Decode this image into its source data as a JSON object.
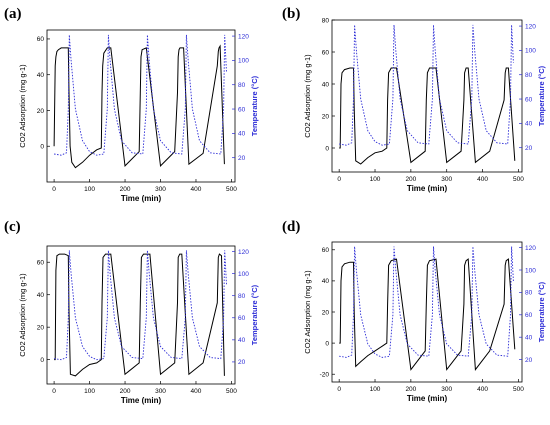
{
  "colors": {
    "adsorption": "#000000",
    "temperature": "#2b2bd6",
    "frame": "#000000"
  },
  "chart_data": [
    {
      "panel": "(a)",
      "type": "line",
      "xlabel": "Time (min)",
      "ylabel": "CO2 Adsorption (mg g-1)",
      "y2label": "Temperature (°C)",
      "xlim": [
        -20,
        510
      ],
      "ylim": [
        -20,
        65
      ],
      "y2lim": [
        0,
        125
      ],
      "xticks": [
        0,
        100,
        200,
        300,
        400,
        500
      ],
      "yticks": [
        0,
        20,
        40,
        60
      ],
      "y2ticks": [
        20,
        40,
        60,
        80,
        100,
        120
      ],
      "grid": false,
      "series": [
        {
          "axis": "left",
          "style": "solid",
          "x": [
            0,
            3,
            5,
            8,
            12,
            20,
            30,
            40,
            42,
            45,
            50,
            60,
            80,
            100,
            120,
            133,
            135,
            137,
            140,
            150,
            160,
            200,
            240,
            243,
            245,
            248,
            260,
            300,
            340,
            348,
            350,
            352,
            355,
            365,
            380,
            420,
            460,
            463,
            465,
            468,
            480
          ],
          "y": [
            0,
            45,
            50,
            53,
            54,
            55,
            55,
            55,
            30,
            0,
            -9,
            -12,
            -9,
            -5,
            -2,
            -1,
            30,
            45,
            52,
            55,
            55,
            -11,
            -3,
            30,
            50,
            54,
            55,
            -11,
            -3,
            30,
            50,
            54,
            55,
            55,
            -10,
            -4,
            45,
            53,
            55,
            56,
            -10
          ]
        },
        {
          "axis": "right",
          "style": "dotted",
          "x": [
            0,
            20,
            35,
            40,
            43,
            48,
            60,
            80,
            100,
            120,
            140,
            150,
            153,
            158,
            170,
            190,
            220,
            250,
            260,
            263,
            268,
            280,
            300,
            330,
            360,
            370,
            373,
            378,
            390,
            410,
            440,
            470,
            478,
            481,
            486
          ],
          "y": [
            23,
            22,
            24,
            60,
            121,
            100,
            60,
            34,
            25,
            22,
            23,
            60,
            121,
            100,
            60,
            34,
            24,
            23,
            60,
            121,
            100,
            60,
            34,
            24,
            23,
            60,
            121,
            100,
            60,
            34,
            24,
            23,
            60,
            121,
            90
          ]
        }
      ]
    },
    {
      "panel": "(b)",
      "type": "line",
      "xlabel": "Time (min)",
      "ylabel": "CO2 Adsorption (mg g-1)",
      "y2label": "Temperature (°C)",
      "xlim": [
        -20,
        510
      ],
      "ylim": [
        -15,
        80
      ],
      "y2lim": [
        0,
        125
      ],
      "xticks": [
        0,
        100,
        200,
        300,
        400,
        500
      ],
      "yticks": [
        0,
        20,
        40,
        60,
        80
      ],
      "y2ticks": [
        20,
        40,
        60,
        80,
        100,
        120
      ],
      "grid": false,
      "series": [
        {
          "axis": "left",
          "style": "solid",
          "x": [
            0,
            3,
            5,
            8,
            15,
            30,
            40,
            42,
            46,
            60,
            80,
            100,
            120,
            133,
            135,
            138,
            145,
            160,
            200,
            240,
            243,
            246,
            252,
            270,
            300,
            340,
            348,
            350,
            354,
            360,
            380,
            420,
            460,
            463,
            466,
            472,
            490
          ],
          "y": [
            0,
            0,
            40,
            47,
            49,
            50,
            50,
            25,
            -8,
            -10,
            -6,
            -3,
            -2,
            0,
            30,
            47,
            50,
            50,
            -9,
            -2,
            30,
            47,
            50,
            50,
            -9,
            -2,
            30,
            47,
            50,
            50,
            -9,
            -2,
            30,
            47,
            50,
            50,
            -8
          ]
        },
        {
          "axis": "right",
          "style": "dotted",
          "x": [
            0,
            20,
            35,
            40,
            43,
            48,
            60,
            80,
            100,
            120,
            140,
            150,
            153,
            158,
            170,
            190,
            220,
            250,
            260,
            263,
            268,
            280,
            300,
            330,
            360,
            370,
            373,
            378,
            390,
            410,
            440,
            470,
            478,
            481,
            486
          ],
          "y": [
            23,
            22,
            24,
            60,
            121,
            100,
            60,
            34,
            25,
            22,
            23,
            60,
            121,
            100,
            60,
            34,
            24,
            23,
            60,
            121,
            100,
            60,
            34,
            24,
            23,
            60,
            121,
            100,
            60,
            34,
            24,
            23,
            60,
            121,
            90
          ]
        }
      ]
    },
    {
      "panel": "(c)",
      "type": "line",
      "xlabel": "Time (min)",
      "ylabel": "CO2 Adsorption (mg g-1)",
      "y2label": "Temperature (°C)",
      "xlim": [
        -20,
        510
      ],
      "ylim": [
        -15,
        70
      ],
      "y2lim": [
        0,
        125
      ],
      "xticks": [
        0,
        100,
        200,
        300,
        400,
        500
      ],
      "yticks": [
        0,
        20,
        40,
        60
      ],
      "y2ticks": [
        20,
        40,
        60,
        80,
        100,
        120
      ],
      "grid": false,
      "series": [
        {
          "axis": "left",
          "style": "solid",
          "x": [
            0,
            3,
            5,
            8,
            15,
            30,
            40,
            42,
            46,
            60,
            80,
            100,
            120,
            133,
            135,
            138,
            145,
            160,
            200,
            240,
            243,
            246,
            252,
            270,
            300,
            340,
            348,
            350,
            354,
            360,
            380,
            420,
            460,
            463,
            466,
            472,
            480
          ],
          "y": [
            0,
            0,
            55,
            64,
            65,
            65,
            64,
            30,
            -9,
            -10,
            -6,
            -3,
            -2,
            0,
            35,
            63,
            65,
            65,
            -9,
            -2,
            35,
            63,
            65,
            65,
            -9,
            -2,
            35,
            63,
            65,
            65,
            -9,
            -2,
            35,
            63,
            65,
            64,
            -10
          ]
        },
        {
          "axis": "right",
          "style": "dotted",
          "x": [
            0,
            20,
            35,
            40,
            43,
            48,
            60,
            80,
            100,
            120,
            140,
            150,
            153,
            158,
            170,
            190,
            220,
            250,
            260,
            263,
            268,
            280,
            300,
            330,
            360,
            370,
            373,
            378,
            390,
            410,
            440,
            470,
            478,
            481,
            486
          ],
          "y": [
            23,
            22,
            24,
            60,
            121,
            100,
            60,
            34,
            25,
            22,
            23,
            60,
            121,
            100,
            60,
            34,
            24,
            23,
            60,
            121,
            100,
            60,
            34,
            24,
            23,
            60,
            121,
            100,
            60,
            34,
            24,
            23,
            60,
            121,
            90
          ]
        }
      ]
    },
    {
      "panel": "(d)",
      "type": "line",
      "xlabel": "Time (min)",
      "ylabel": "CO2 Adsorption (mg g-1)",
      "y2label": "Temperature (°C)",
      "xlim": [
        -20,
        510
      ],
      "ylim": [
        -25,
        65
      ],
      "y2lim": [
        0,
        125
      ],
      "xticks": [
        0,
        100,
        200,
        300,
        400,
        500
      ],
      "yticks": [
        -20,
        0,
        20,
        40,
        60
      ],
      "y2ticks": [
        20,
        40,
        60,
        80,
        100,
        120
      ],
      "grid": false,
      "series": [
        {
          "axis": "left",
          "style": "solid",
          "x": [
            0,
            3,
            5,
            8,
            15,
            30,
            40,
            42,
            46,
            60,
            80,
            100,
            120,
            133,
            135,
            138,
            145,
            160,
            200,
            240,
            243,
            246,
            252,
            270,
            300,
            340,
            348,
            350,
            354,
            360,
            380,
            420,
            460,
            463,
            466,
            472,
            490
          ],
          "y": [
            0,
            0,
            40,
            49,
            51,
            52,
            52,
            20,
            -15,
            -12,
            -8,
            -5,
            -2,
            0,
            25,
            50,
            53,
            54,
            -17,
            -5,
            25,
            50,
            53,
            54,
            -17,
            -5,
            25,
            50,
            53,
            54,
            -17,
            -5,
            25,
            50,
            53,
            54,
            -4
          ]
        },
        {
          "axis": "right",
          "style": "dotted",
          "x": [
            0,
            20,
            35,
            40,
            43,
            48,
            60,
            80,
            100,
            120,
            140,
            150,
            153,
            158,
            170,
            190,
            220,
            250,
            260,
            263,
            268,
            280,
            300,
            330,
            360,
            370,
            373,
            378,
            390,
            410,
            440,
            470,
            478,
            481,
            486
          ],
          "y": [
            23,
            22,
            24,
            60,
            121,
            100,
            60,
            34,
            25,
            22,
            23,
            60,
            121,
            100,
            60,
            34,
            24,
            23,
            60,
            121,
            100,
            60,
            34,
            24,
            23,
            60,
            121,
            100,
            60,
            34,
            24,
            23,
            60,
            121,
            90
          ]
        }
      ]
    }
  ]
}
